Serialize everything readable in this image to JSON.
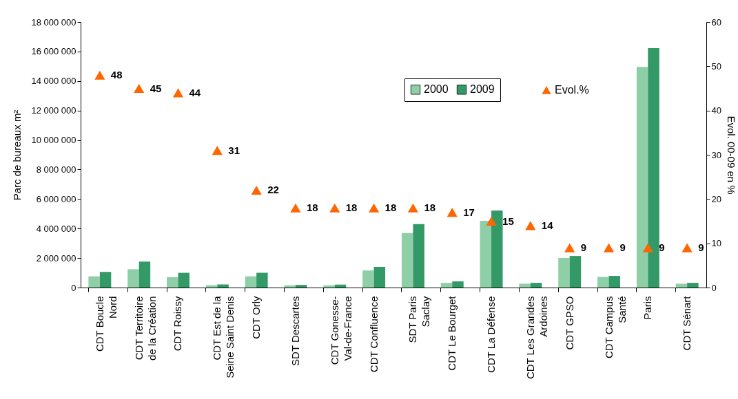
{
  "chart_data": {
    "type": "bar",
    "ylabel": "Parc de bureaux m²",
    "y2label": "Evol. 00-09 en %",
    "categories": [
      "CDT Boucle Nord",
      "CDT Territoire de la Création",
      "CDT Roissy",
      "CDT Est de la Seine Saint Denis",
      "CDT Orly",
      "SDT Descartes",
      "CDT Gonesse-Val-de-France",
      "CDT Confluence",
      "SDT Paris Saclay",
      "CDT Le Bourget",
      "CDT La Défense",
      "CDT Les Grandes Ardoines",
      "CDT GPSO",
      "CDT Campus Santé",
      "Paris",
      "CDT Sénart"
    ],
    "series": [
      {
        "name": "2000",
        "color": "#8fcfa8",
        "values": [
          760000,
          1240000,
          700000,
          160000,
          760000,
          150000,
          150000,
          1160000,
          3690000,
          320000,
          4520000,
          260000,
          2010000,
          720000,
          14960000,
          260000
        ]
      },
      {
        "name": "2009",
        "color": "#339966",
        "values": [
          1060000,
          1760000,
          1000000,
          210000,
          1000000,
          180000,
          200000,
          1400000,
          4300000,
          420000,
          5220000,
          320000,
          2140000,
          790000,
          16230000,
          320000
        ]
      },
      {
        "name": "Evol.%",
        "type": "scatter",
        "axis": "y2",
        "marker": "triangle",
        "color": "#ff6600",
        "values": [
          48,
          45,
          44,
          31,
          22,
          18,
          18,
          18,
          18,
          17,
          15,
          14,
          9,
          9,
          9,
          9
        ],
        "value_labels": [
          "48",
          "45",
          "44",
          "31",
          "22",
          "18",
          "18",
          "18",
          "18",
          "17",
          "15",
          "14",
          "9",
          "9",
          "9",
          "9"
        ]
      }
    ],
    "ylim": [
      0,
      18000000
    ],
    "yticks": [
      {
        "value": 0,
        "label": "0"
      },
      {
        "value": 2000000,
        "label": "2 000 000"
      },
      {
        "value": 4000000,
        "label": "4 000 000"
      },
      {
        "value": 6000000,
        "label": "6 000 000"
      },
      {
        "value": 8000000,
        "label": "8 000 000"
      },
      {
        "value": 10000000,
        "label": "10 000 000"
      },
      {
        "value": 12000000,
        "label": "12 000 000"
      },
      {
        "value": 14000000,
        "label": "14 000 000"
      },
      {
        "value": 16000000,
        "label": "16 000 000"
      },
      {
        "value": 18000000,
        "label": "18 000 000"
      }
    ],
    "y2lim": [
      0,
      60
    ],
    "y2ticks": [
      0,
      10,
      20,
      30,
      40,
      50,
      60
    ],
    "legend": "top right"
  }
}
